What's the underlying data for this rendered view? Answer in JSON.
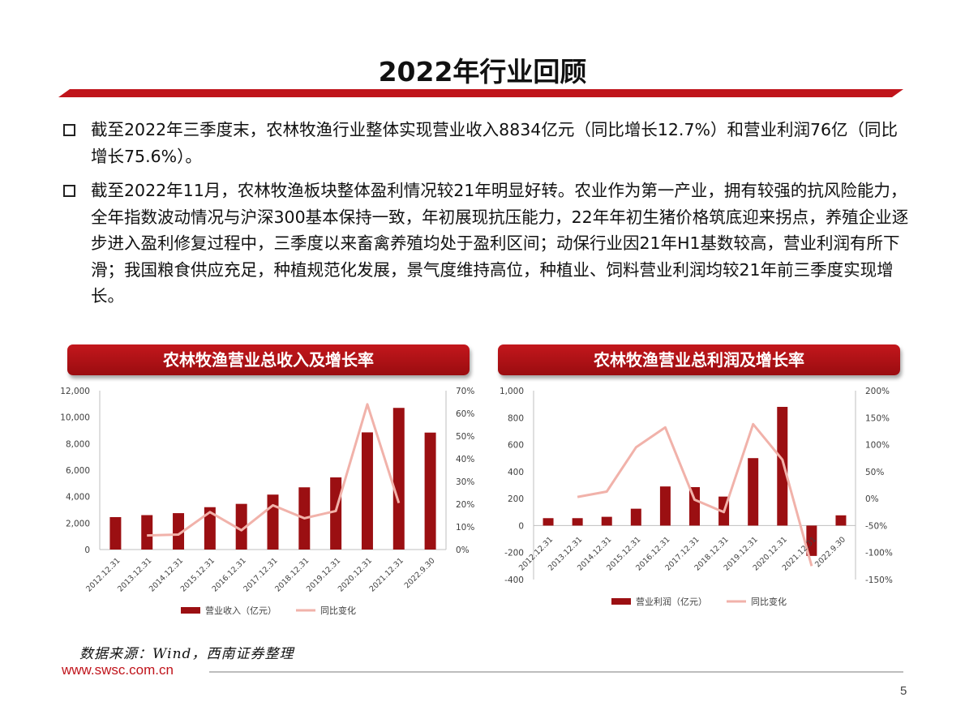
{
  "page": {
    "title": "2022年行业回顾",
    "bullets": [
      "截至2022年三季度末，农林牧渔行业整体实现营业收入8834亿元（同比增长12.7%）和营业利润76亿（同比增长75.6%）。",
      "截至2022年11月，农林牧渔板块整体盈利情况较21年明显好转。农业作为第一产业，拥有较强的抗风险能力，全年指数波动情况与沪深300基本保持一致，年初展现抗压能力，22年年初生猪价格筑底迎来拐点，养殖企业逐步进入盈利修复过程中，三季度以来畜禽养殖均处于盈利区间；动保行业因21年H1基数较高，营业利润有所下滑；我国粮食供应充足，种植规范化发展，景气度维持高位，种植业、饲料营业利润均较21年前三季度实现增长。"
    ],
    "source": "数据来源：Wind，西南证券整理",
    "website": "www.swsc.com.cn",
    "page_number": "5"
  },
  "colors": {
    "bar": "#9b0f12",
    "line": "#f1b2aa",
    "accent": "#c0141b",
    "rule": "#c0141b"
  },
  "chart_data": [
    {
      "type": "bar",
      "title": "农林牧渔营业总收入及增长率",
      "categories": [
        "2012.12.31",
        "2013.12.31",
        "2014.12.31",
        "2015.12.31",
        "2016.12.31",
        "2017.12.31",
        "2018.12.31",
        "2019.12.31",
        "2020.12.31",
        "2021.12.31",
        "2022.9.30"
      ],
      "series": [
        {
          "name": "营业收入（亿元）",
          "type": "bar",
          "axis": "left",
          "values": [
            2450,
            2600,
            2750,
            3200,
            3450,
            4150,
            4700,
            5450,
            8850,
            10700,
            8834
          ]
        },
        {
          "name": "同比变化",
          "type": "line",
          "axis": "right",
          "unit": "%",
          "values": [
            null,
            6.2,
            6.6,
            16.5,
            8.5,
            19.5,
            13.8,
            17.0,
            64.0,
            20.5,
            null
          ]
        }
      ],
      "ylim": [
        0,
        12000
      ],
      "yticks": [
        "12,000",
        "10,000",
        "8,000",
        "6,000",
        "4,000",
        "2,000",
        "0"
      ],
      "y2lim": [
        0,
        70
      ],
      "y2ticks": [
        "70%",
        "60%",
        "50%",
        "40%",
        "30%",
        "20%",
        "10%",
        "0%"
      ],
      "legend": [
        "营业收入（亿元）",
        "同比变化"
      ]
    },
    {
      "type": "bar",
      "title": "农林牧渔营业总利润及增长率",
      "categories": [
        "2012.12.31",
        "2013.12.31",
        "2014.12.31",
        "2015.12.31",
        "2016.12.31",
        "2017.12.31",
        "2018.12.31",
        "2019.12.31",
        "2020.12.31",
        "2021.12.31",
        "2022.9.30"
      ],
      "series": [
        {
          "name": "营业利润（亿元）",
          "type": "bar",
          "axis": "left",
          "values": [
            55,
            55,
            65,
            125,
            290,
            285,
            215,
            500,
            880,
            -225,
            76
          ]
        },
        {
          "name": "同比变化",
          "type": "line",
          "axis": "right",
          "unit": "%",
          "values": [
            null,
            3,
            13,
            95,
            132,
            -2,
            -25,
            138,
            72,
            -125,
            null
          ]
        }
      ],
      "ylim": [
        -400,
        1000
      ],
      "yticks": [
        "1,000",
        "800",
        "600",
        "400",
        "200",
        "0",
        "-200",
        "-400"
      ],
      "y2lim": [
        -150,
        200
      ],
      "y2ticks": [
        "200%",
        "150%",
        "100%",
        "50%",
        "0%",
        "-50%",
        "-100%",
        "-150%"
      ],
      "legend": [
        "营业利润（亿元）",
        "同比变化"
      ]
    }
  ]
}
